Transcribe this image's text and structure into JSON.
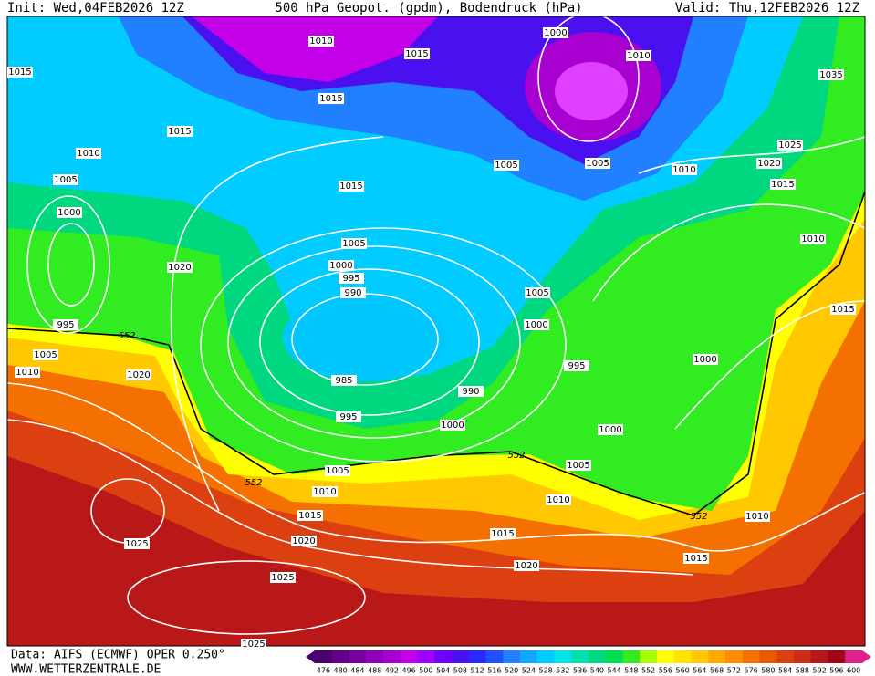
{
  "header": {
    "init": "Init: Wed,04FEB2026 12Z",
    "title": "500 hPa Geopot. (gpdm), Bodendruck (hPa)",
    "valid": "Valid: Thu,12FEB2026 12Z"
  },
  "footer": {
    "data": "Data: AIFS (ECMWF) OPER 0.250°",
    "site": "WWW.WETTERZENTRALE.DE"
  },
  "colorbar": {
    "levels": [
      476,
      480,
      484,
      488,
      492,
      496,
      500,
      504,
      508,
      512,
      516,
      520,
      524,
      528,
      532,
      536,
      540,
      544,
      548,
      552,
      556,
      560,
      564,
      568,
      572,
      576,
      580,
      584,
      588,
      592,
      596,
      600
    ],
    "colors": [
      "#4b0070",
      "#62008a",
      "#7a00a0",
      "#9000b8",
      "#a800d0",
      "#c400e8",
      "#a000ff",
      "#7000ff",
      "#4a10f0",
      "#2828ff",
      "#2050ff",
      "#2080ff",
      "#10a8ff",
      "#00ccff",
      "#00e4e8",
      "#00e0b0",
      "#00d880",
      "#00dc50",
      "#30ec20",
      "#a8ff00",
      "#ffff00",
      "#ffe400",
      "#ffc800",
      "#ffaa00",
      "#ff8c00",
      "#f47000",
      "#e85800",
      "#dc4010",
      "#cc2c18",
      "#b81818",
      "#a00818",
      "#e0208c"
    ]
  },
  "isobar_labels": [
    "1015",
    "1010",
    "1015",
    "1000",
    "1010",
    "1035",
    "1015",
    "1015",
    "1010",
    "1005",
    "1005",
    "1010",
    "1025",
    "1020",
    "1015",
    "1005",
    "1015",
    "1000",
    "1005",
    "1010",
    "1020",
    "1000",
    "995",
    "990",
    "1005",
    "1015",
    "995",
    "552",
    "1000",
    "1005",
    "1010",
    "1020",
    "1000",
    "995",
    "985",
    "990",
    "995",
    "1000",
    "1000",
    "552",
    "1005",
    "1005",
    "552",
    "1010",
    "1010",
    "552",
    "1010",
    "1015",
    "1015",
    "1020",
    "1025",
    "1015",
    "1020",
    "1025",
    "1025"
  ]
}
